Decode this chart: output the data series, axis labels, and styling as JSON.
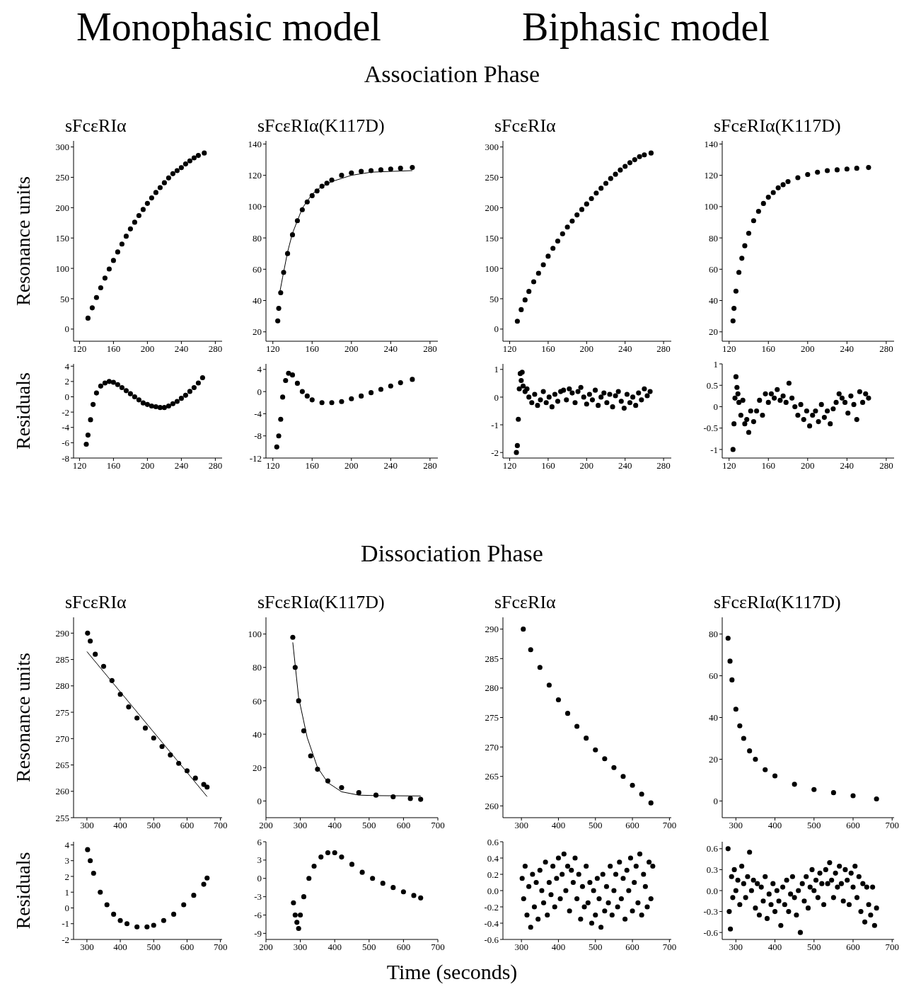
{
  "chart_data": [
    {
      "type": "scatter",
      "title": "sFcεRIα",
      "ylabel": "Resonance units",
      "annotations": [
        "Monophasic model",
        "Association Phase"
      ],
      "marker": "circle",
      "xlim": [
        113,
        288
      ],
      "xticks": [
        120,
        160,
        200,
        240,
        280
      ],
      "ylim": [
        -20,
        310
      ],
      "yticks": [
        0,
        50,
        100,
        150,
        200,
        250,
        300
      ],
      "series": [
        {
          "type": "scatter",
          "color": "#000000",
          "x": [
            130,
            135,
            140,
            145,
            150,
            155,
            160,
            165,
            170,
            175,
            180,
            185,
            190,
            195,
            200,
            205,
            210,
            215,
            220,
            225,
            230,
            235,
            240,
            245,
            250,
            255,
            260,
            267
          ],
          "values": [
            18,
            35,
            52,
            68,
            84,
            99,
            113,
            127,
            140,
            153,
            165,
            176,
            187,
            197,
            207,
            216,
            225,
            233,
            241,
            249,
            256,
            261,
            266,
            272,
            277,
            282,
            286,
            290
          ]
        }
      ]
    },
    {
      "type": "scatter",
      "title": "sFcεRIα(K117D)",
      "marker": "circle",
      "xlim": [
        113,
        288
      ],
      "xticks": [
        120,
        160,
        200,
        240,
        280
      ],
      "ylim": [
        14,
        142
      ],
      "yticks": [
        20,
        40,
        60,
        80,
        100,
        120,
        140
      ],
      "series": [
        {
          "type": "scatter",
          "color": "#000000",
          "x": [
            125,
            126,
            128,
            131,
            135,
            140,
            145,
            150,
            155,
            160,
            165,
            170,
            175,
            180,
            190,
            200,
            210,
            220,
            230,
            240,
            250,
            262
          ],
          "values": [
            27,
            35,
            45,
            58,
            70,
            82,
            91,
            98,
            103,
            107,
            110,
            113,
            115,
            117,
            120,
            121.5,
            122.5,
            123,
            123.5,
            124,
            124.5,
            125
          ]
        },
        {
          "type": "line",
          "color": "#000000",
          "line_style": "solid",
          "marker": "none",
          "x": [
            127,
            130,
            135,
            140,
            150,
            160,
            170,
            180,
            200,
            220,
            240,
            262
          ],
          "values": [
            45,
            55,
            71,
            83,
            99,
            108,
            113,
            116,
            120,
            122,
            122.5,
            123
          ]
        }
      ]
    },
    {
      "type": "scatter",
      "title": "sFcεRIα",
      "annotations": [
        "Biphasic model"
      ],
      "marker": "circle",
      "xlim": [
        113,
        288
      ],
      "xticks": [
        120,
        160,
        200,
        240,
        280
      ],
      "ylim": [
        -20,
        310
      ],
      "yticks": [
        0,
        50,
        100,
        150,
        200,
        250,
        300
      ],
      "series": [
        {
          "type": "scatter",
          "color": "#000000",
          "x": [
            128,
            132,
            136,
            140,
            145,
            150,
            155,
            160,
            165,
            170,
            175,
            180,
            185,
            190,
            195,
            200,
            205,
            210,
            215,
            220,
            225,
            230,
            235,
            240,
            245,
            250,
            255,
            260,
            267
          ],
          "values": [
            13,
            32,
            48,
            62,
            78,
            92,
            106,
            120,
            133,
            145,
            157,
            168,
            178,
            188,
            197,
            206,
            215,
            224,
            232,
            240,
            248,
            255,
            262,
            268,
            274,
            279,
            284,
            287,
            290
          ]
        }
      ]
    },
    {
      "type": "scatter",
      "title": "sFcεRIα(K117D)",
      "marker": "circle",
      "xlim": [
        113,
        288
      ],
      "xticks": [
        120,
        160,
        200,
        240,
        280
      ],
      "ylim": [
        14,
        142
      ],
      "yticks": [
        20,
        40,
        60,
        80,
        100,
        120,
        140
      ],
      "series": [
        {
          "type": "scatter",
          "color": "#000000",
          "x": [
            124,
            125,
            127,
            130,
            133,
            136,
            140,
            145,
            150,
            155,
            160,
            165,
            170,
            175,
            180,
            190,
            200,
            210,
            220,
            230,
            240,
            250,
            262
          ],
          "values": [
            27,
            35,
            46,
            58,
            67,
            75,
            83,
            91,
            97,
            102,
            106,
            109,
            112,
            114,
            116,
            118.5,
            120.5,
            122,
            123,
            123.5,
            124,
            124.5,
            125
          ]
        }
      ]
    },
    {
      "type": "scatter",
      "ylabel": "Residuals",
      "marker": "circle",
      "xlim": [
        113,
        288
      ],
      "xticks": [
        120,
        160,
        200,
        240,
        280
      ],
      "ylim": [
        -8,
        4.3
      ],
      "yticks": [
        -8,
        -6,
        -4,
        -2,
        0,
        2,
        4
      ],
      "series": [
        {
          "type": "scatter",
          "color": "#000000",
          "x": [
            128,
            130,
            133,
            136,
            140,
            145,
            150,
            155,
            160,
            165,
            170,
            175,
            180,
            185,
            190,
            195,
            200,
            205,
            210,
            215,
            220,
            225,
            230,
            235,
            240,
            245,
            250,
            255,
            260,
            265
          ],
          "values": [
            -6.2,
            -5,
            -3,
            -1,
            0.5,
            1.4,
            1.8,
            2,
            1.9,
            1.6,
            1.2,
            0.8,
            0.4,
            0,
            -0.4,
            -0.8,
            -1,
            -1.2,
            -1.3,
            -1.4,
            -1.4,
            -1.2,
            -0.9,
            -0.6,
            -0.2,
            0.2,
            0.7,
            1.2,
            1.8,
            2.5
          ]
        }
      ]
    },
    {
      "type": "scatter",
      "marker": "circle",
      "xlim": [
        113,
        288
      ],
      "xticks": [
        120,
        160,
        200,
        240,
        280
      ],
      "ylim": [
        -12,
        5
      ],
      "yticks": [
        -12,
        -8,
        -4,
        0,
        4
      ],
      "series": [
        {
          "type": "scatter",
          "color": "#000000",
          "x": [
            124,
            126,
            128,
            130,
            133,
            136,
            140,
            145,
            150,
            155,
            160,
            170,
            180,
            190,
            200,
            210,
            220,
            230,
            240,
            250,
            262
          ],
          "values": [
            -10,
            -8,
            -5,
            -1,
            2,
            3.3,
            3,
            1.5,
            0,
            -0.8,
            -1.5,
            -2,
            -2,
            -1.8,
            -1.3,
            -0.8,
            -0.2,
            0.4,
            1,
            1.6,
            2.2
          ]
        }
      ]
    },
    {
      "type": "scatter",
      "marker": "circle",
      "xlim": [
        113,
        288
      ],
      "xticks": [
        120,
        160,
        200,
        240,
        280
      ],
      "ylim": [
        -2.2,
        1.2
      ],
      "yticks": [
        -2,
        -1,
        0,
        1
      ],
      "series": [
        {
          "type": "scatter",
          "color": "#000000",
          "x": [
            127,
            128,
            129,
            130,
            131,
            132,
            133,
            134,
            136,
            138,
            140,
            143,
            146,
            149,
            152,
            155,
            158,
            161,
            164,
            167,
            170,
            173,
            176,
            179,
            182,
            185,
            188,
            191,
            194,
            197,
            200,
            203,
            206,
            209,
            212,
            215,
            218,
            221,
            224,
            227,
            230,
            233,
            236,
            239,
            242,
            245,
            248,
            251,
            254,
            257,
            260,
            263,
            266
          ],
          "values": [
            -2,
            -1.75,
            -0.8,
            0.3,
            0.85,
            0.6,
            0.9,
            0.4,
            0.2,
            0.3,
            0,
            -0.2,
            0.1,
            -0.3,
            -0.1,
            0.2,
            -0.2,
            0,
            -0.35,
            0.1,
            -0.15,
            0.2,
            0.25,
            -0.1,
            0.3,
            0.15,
            -0.2,
            0.2,
            0.35,
            0,
            -0.25,
            0.1,
            -0.1,
            0.25,
            -0.3,
            0,
            0.15,
            -0.2,
            0.1,
            -0.35,
            0.05,
            0.2,
            -0.15,
            -0.4,
            0.1,
            -0.2,
            0,
            -0.3,
            0.15,
            -0.1,
            0.3,
            0.05,
            0.2
          ]
        }
      ]
    },
    {
      "type": "scatter",
      "marker": "circle",
      "xlim": [
        113,
        288
      ],
      "xticks": [
        120,
        160,
        200,
        240,
        280
      ],
      "ylim": [
        -1.2,
        1
      ],
      "yticks": [
        -1,
        -0.5,
        0,
        0.5,
        1
      ],
      "series": [
        {
          "type": "scatter",
          "color": "#000000",
          "x": [
            124,
            125,
            126,
            127,
            128,
            129,
            130,
            132,
            134,
            136,
            138,
            140,
            142,
            145,
            148,
            151,
            154,
            157,
            160,
            163,
            166,
            169,
            172,
            175,
            178,
            181,
            184,
            187,
            190,
            193,
            196,
            199,
            202,
            205,
            208,
            211,
            214,
            217,
            220,
            223,
            226,
            229,
            232,
            235,
            238,
            241,
            244,
            247,
            250,
            253,
            256,
            259,
            262
          ],
          "values": [
            -1,
            -0.4,
            0.2,
            0.7,
            0.45,
            0.3,
            0.1,
            -0.2,
            0.15,
            -0.4,
            -0.3,
            -0.6,
            -0.1,
            -0.35,
            -0.1,
            0.15,
            -0.2,
            0.3,
            0.1,
            0.3,
            0.2,
            0.4,
            0.15,
            0.25,
            0.1,
            0.55,
            0.2,
            0,
            -0.2,
            0.05,
            -0.3,
            -0.1,
            -0.45,
            -0.2,
            -0.1,
            -0.35,
            0.05,
            -0.25,
            -0.1,
            -0.4,
            -0.05,
            0.1,
            0.3,
            0.2,
            0.1,
            -0.15,
            0.25,
            0.05,
            -0.3,
            0.35,
            0.1,
            0.3,
            0.2
          ]
        }
      ]
    },
    {
      "type": "scatter",
      "title": "sFcεRIα",
      "ylabel": "Resonance units",
      "annotations": [
        "Dissociation Phase"
      ],
      "marker": "circle",
      "xlim": [
        260,
        705
      ],
      "xticks": [
        300,
        400,
        500,
        600,
        700
      ],
      "ylim": [
        255,
        293
      ],
      "yticks": [
        255,
        260,
        265,
        270,
        275,
        280,
        285,
        290
      ],
      "series": [
        {
          "type": "scatter",
          "color": "#000000",
          "x": [
            302,
            310,
            325,
            350,
            375,
            400,
            425,
            450,
            475,
            500,
            525,
            550,
            575,
            600,
            625,
            650,
            660
          ],
          "values": [
            290,
            288.5,
            286,
            283.7,
            281,
            278.4,
            276,
            273.9,
            272,
            270.1,
            268.5,
            266.9,
            265.3,
            263.9,
            262.5,
            261.3,
            260.8
          ]
        },
        {
          "type": "line",
          "color": "#000000",
          "line_style": "solid",
          "marker": "none",
          "x": [
            300,
            660
          ],
          "values": [
            286.5,
            259
          ]
        }
      ]
    },
    {
      "type": "scatter",
      "title": "sFcεRIα(K117D)",
      "marker": "circle",
      "xlim": [
        200,
        700
      ],
      "xticks": [
        200,
        300,
        400,
        500,
        600,
        700
      ],
      "ylim": [
        -10,
        110
      ],
      "yticks": [
        0,
        20,
        40,
        60,
        80,
        100
      ],
      "series": [
        {
          "type": "scatter",
          "color": "#000000",
          "x": [
            278,
            285,
            295,
            310,
            330,
            350,
            380,
            420,
            470,
            520,
            570,
            620,
            650
          ],
          "values": [
            98,
            80,
            60,
            42,
            27,
            19,
            12,
            8,
            5,
            3.5,
            2.5,
            1.5,
            1
          ]
        },
        {
          "type": "line",
          "color": "#000000",
          "line_style": "solid",
          "marker": "none",
          "x": [
            278,
            295,
            320,
            350,
            380,
            420,
            470,
            520,
            650
          ],
          "values": [
            95,
            62,
            38,
            20,
            11,
            5.5,
            3.5,
            3.2,
            3
          ]
        }
      ]
    },
    {
      "type": "scatter",
      "title": "sFcεRIα",
      "marker": "circle",
      "xlim": [
        250,
        705
      ],
      "xticks": [
        300,
        400,
        500,
        600,
        700
      ],
      "ylim": [
        258,
        292
      ],
      "yticks": [
        260,
        265,
        270,
        275,
        280,
        285,
        290
      ],
      "series": [
        {
          "type": "scatter",
          "color": "#000000",
          "x": [
            305,
            325,
            350,
            375,
            400,
            425,
            450,
            475,
            500,
            525,
            550,
            575,
            600,
            625,
            650
          ],
          "values": [
            290,
            286.5,
            283.5,
            280.5,
            278,
            275.7,
            273.5,
            271.5,
            269.5,
            268,
            266.5,
            265,
            263.5,
            262,
            260.5
          ]
        }
      ]
    },
    {
      "type": "scatter",
      "title": "sFcεRIα(K117D)",
      "marker": "circle",
      "xlim": [
        265,
        705
      ],
      "xticks": [
        300,
        400,
        500,
        600,
        700
      ],
      "ylim": [
        -8,
        88
      ],
      "yticks": [
        0,
        20,
        40,
        60,
        80
      ],
      "series": [
        {
          "type": "scatter",
          "color": "#000000",
          "x": [
            280,
            285,
            290,
            300,
            310,
            320,
            335,
            350,
            375,
            400,
            450,
            500,
            550,
            600,
            660
          ],
          "values": [
            78,
            67,
            58,
            44,
            36,
            30,
            24,
            20,
            15,
            12,
            8,
            5.5,
            4,
            2.5,
            1
          ]
        }
      ]
    },
    {
      "type": "scatter",
      "ylabel": "Residuals",
      "marker": "circle",
      "xlim": [
        260,
        705
      ],
      "xticks": [
        300,
        400,
        500,
        600,
        700
      ],
      "ylim": [
        -2,
        4.2
      ],
      "yticks": [
        -2,
        -1,
        0,
        1,
        2,
        3,
        4
      ],
      "series": [
        {
          "type": "scatter",
          "color": "#000000",
          "x": [
            302,
            310,
            320,
            340,
            360,
            380,
            400,
            420,
            450,
            480,
            500,
            530,
            560,
            590,
            620,
            650,
            660
          ],
          "values": [
            3.7,
            3,
            2.2,
            1,
            0.2,
            -0.4,
            -0.8,
            -1,
            -1.2,
            -1.2,
            -1.1,
            -0.8,
            -0.4,
            0.2,
            0.8,
            1.5,
            1.9
          ]
        }
      ]
    },
    {
      "type": "scatter",
      "xlabel": "Time (seconds)",
      "marker": "circle",
      "xlim": [
        200,
        700
      ],
      "xticks": [
        200,
        300,
        400,
        500,
        600,
        700
      ],
      "ylim": [
        -10,
        6
      ],
      "yticks": [
        -9,
        -6,
        -3,
        0,
        3,
        6
      ],
      "series": [
        {
          "type": "scatter",
          "color": "#000000",
          "x": [
            280,
            285,
            290,
            295,
            300,
            310,
            325,
            340,
            360,
            380,
            400,
            420,
            450,
            480,
            510,
            540,
            570,
            600,
            630,
            650
          ],
          "values": [
            -4,
            -6,
            -7.2,
            -8.2,
            -6,
            -3,
            0,
            2,
            3.5,
            4.2,
            4.2,
            3.5,
            2.3,
            1,
            0,
            -0.8,
            -1.5,
            -2.2,
            -2.8,
            -3.2
          ]
        }
      ]
    },
    {
      "type": "scatter",
      "marker": "circle",
      "xlim": [
        250,
        705
      ],
      "xticks": [
        300,
        400,
        500,
        600,
        700
      ],
      "ylim": [
        -0.6,
        0.6
      ],
      "yticks": [
        -0.6,
        -0.4,
        -0.2,
        {
          "value": 0,
          "label": "0.0"
        },
        0.2,
        0.4,
        0.6
      ],
      "series": [
        {
          "type": "scatter",
          "color": "#000000",
          "x": [
            302,
            306,
            310,
            315,
            320,
            325,
            330,
            335,
            340,
            345,
            350,
            355,
            360,
            365,
            370,
            375,
            380,
            385,
            390,
            395,
            400,
            405,
            410,
            415,
            420,
            425,
            430,
            435,
            440,
            445,
            450,
            455,
            460,
            465,
            470,
            475,
            480,
            485,
            490,
            495,
            500,
            505,
            510,
            515,
            520,
            525,
            530,
            535,
            540,
            545,
            550,
            555,
            560,
            565,
            570,
            575,
            580,
            585,
            590,
            595,
            600,
            605,
            610,
            615,
            620,
            625,
            630,
            635,
            640,
            645,
            650,
            655
          ],
          "values": [
            0.15,
            -0.1,
            0.3,
            -0.3,
            0.05,
            -0.45,
            0.2,
            -0.2,
            0.1,
            -0.35,
            0.25,
            0,
            -0.15,
            0.35,
            -0.3,
            0.1,
            -0.05,
            0.3,
            -0.2,
            0.15,
            0.4,
            -0.1,
            0.2,
            0.45,
            0,
            0.3,
            -0.25,
            0.25,
            0.1,
            0.4,
            -0.1,
            0.2,
            -0.35,
            0.05,
            -0.2,
            0.3,
            -0.15,
            0.1,
            -0.4,
            0,
            -0.3,
            0.15,
            -0.1,
            -0.45,
            0.2,
            -0.25,
            0.05,
            -0.15,
            0.3,
            -0.3,
            0,
            0.2,
            -0.2,
            0.35,
            -0.1,
            0.15,
            -0.35,
            0.25,
            0,
            0.4,
            -0.25,
            0.1,
            0.3,
            -0.15,
            0.45,
            -0.3,
            0.2,
            0.05,
            -0.2,
            0.35,
            -0.1,
            0.3
          ]
        }
      ]
    },
    {
      "type": "scatter",
      "marker": "circle",
      "xlim": [
        265,
        705
      ],
      "xticks": [
        300,
        400,
        500,
        600,
        700
      ],
      "ylim": [
        -0.7,
        0.7
      ],
      "yticks": [
        -0.6,
        -0.3,
        {
          "value": 0,
          "label": "0.0"
        },
        0.3,
        0.6
      ],
      "series": [
        {
          "type": "scatter",
          "color": "#000000",
          "x": [
            280,
            283,
            286,
            289,
            292,
            296,
            300,
            305,
            310,
            315,
            320,
            325,
            330,
            335,
            340,
            345,
            350,
            355,
            360,
            365,
            370,
            375,
            380,
            385,
            390,
            395,
            400,
            405,
            410,
            415,
            420,
            425,
            430,
            435,
            440,
            445,
            450,
            455,
            460,
            465,
            470,
            475,
            480,
            485,
            490,
            495,
            500,
            505,
            510,
            515,
            520,
            525,
            530,
            535,
            540,
            545,
            550,
            555,
            560,
            565,
            570,
            575,
            580,
            585,
            590,
            595,
            600,
            605,
            610,
            615,
            620,
            625,
            630,
            635,
            640,
            645,
            650,
            655,
            660
          ],
          "values": [
            0.6,
            -0.3,
            -0.55,
            0.2,
            -0.1,
            0.3,
            0,
            0.15,
            -0.2,
            0.35,
            0.1,
            -0.1,
            0.2,
            0.55,
            0,
            0.15,
            -0.25,
            0.1,
            -0.35,
            0.05,
            -0.15,
            0.2,
            -0.4,
            -0.05,
            -0.2,
            0.1,
            -0.3,
            0,
            -0.15,
            -0.5,
            0.05,
            -0.2,
            0.15,
            -0.3,
            -0.05,
            0.2,
            -0.1,
            -0.35,
            0,
            -0.6,
            0.1,
            -0.15,
            0.2,
            -0.25,
            0.05,
            0.3,
            0,
            0.15,
            -0.1,
            0.25,
            0.1,
            -0.2,
            0.3,
            0.1,
            0.4,
            0.15,
            -0.1,
            0.25,
            0.05,
            0.35,
            0.1,
            -0.15,
            0.3,
            0.15,
            -0.2,
            0.25,
            0.05,
            0.35,
            -0.1,
            0.2,
            -0.3,
            0.1,
            -0.45,
            0.05,
            -0.2,
            -0.35,
            0.05,
            -0.5,
            -0.25
          ]
        }
      ]
    }
  ]
}
